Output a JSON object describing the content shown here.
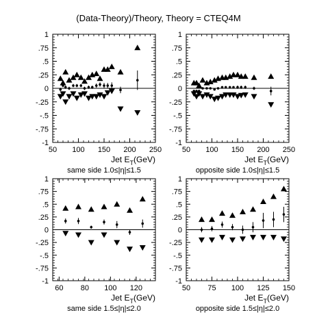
{
  "title": "(Data-Theory)/Theory, Theory = CTEQ4M",
  "chart_data": [
    {
      "type": "scatter",
      "xlabel": "Jet E",
      "xlabel_sub": "T",
      "xlabel_unit": "(GeV)",
      "caption": "same side 1.0≤|η|≤1.5",
      "xlim": [
        50,
        250
      ],
      "ylim": [
        -1,
        1
      ],
      "xticks": [
        50,
        100,
        150,
        200,
        250
      ],
      "yticks": [
        -1,
        -0.75,
        -0.5,
        -0.25,
        0,
        0.25,
        0.5,
        0.75,
        1
      ],
      "series": [
        {
          "marker": "triangle-up",
          "x": [
            65,
            70,
            75,
            82,
            90,
            97,
            105,
            112,
            120,
            127,
            135,
            142,
            150,
            157,
            165,
            182,
            215
          ],
          "y": [
            0.18,
            0.1,
            0.3,
            0.15,
            0.2,
            0.25,
            0.2,
            0.13,
            0.2,
            0.25,
            0.27,
            0.18,
            0.35,
            0.35,
            0.4,
            0.3,
            0.75
          ]
        },
        {
          "marker": "triangle-down",
          "x": [
            65,
            70,
            75,
            82,
            90,
            97,
            105,
            112,
            120,
            127,
            135,
            142,
            150,
            157,
            165,
            182,
            215
          ],
          "y": [
            -0.15,
            -0.1,
            -0.25,
            -0.15,
            -0.1,
            -0.18,
            -0.12,
            -0.1,
            -0.18,
            -0.15,
            -0.15,
            -0.12,
            -0.15,
            -0.08,
            -0.05,
            -0.38,
            -0.45
          ]
        },
        {
          "marker": "point",
          "x": [
            65,
            70,
            75,
            82,
            90,
            97,
            105,
            112,
            120,
            127,
            135,
            142,
            150,
            157,
            165,
            182,
            215
          ],
          "y": [
            -0.02,
            0.05,
            0.02,
            0.0,
            0.05,
            0.05,
            0.05,
            0.0,
            0.02,
            0.02,
            0.05,
            0.07,
            0.05,
            0.05,
            0.05,
            -0.03,
            0.15
          ],
          "err": [
            0.03,
            0.03,
            0.03,
            0.03,
            0.03,
            0.03,
            0.03,
            0.03,
            0.03,
            0.03,
            0.04,
            0.04,
            0.05,
            0.05,
            0.06,
            0.06,
            0.18
          ]
        }
      ]
    },
    {
      "type": "scatter",
      "xlabel": "Jet E",
      "xlabel_sub": "T",
      "xlabel_unit": "(GeV)",
      "caption": "opposite side 1.0≤|η|≤1.5",
      "xlim": [
        50,
        250
      ],
      "ylim": [
        -1,
        1
      ],
      "xticks": [
        50,
        100,
        150,
        200,
        250
      ],
      "yticks": [
        -1,
        -0.75,
        -0.5,
        -0.25,
        0,
        0.25,
        0.5,
        0.75,
        1
      ],
      "series": [
        {
          "marker": "triangle-up",
          "x": [
            65,
            70,
            75,
            82,
            90,
            97,
            105,
            112,
            120,
            127,
            135,
            142,
            150,
            157,
            165,
            182,
            215
          ],
          "y": [
            0.1,
            0.1,
            0.05,
            0.15,
            0.1,
            0.12,
            0.15,
            0.18,
            0.2,
            0.2,
            0.22,
            0.25,
            0.25,
            0.22,
            0.22,
            0.2,
            0.22
          ]
        },
        {
          "marker": "triangle-down",
          "x": [
            65,
            70,
            75,
            82,
            90,
            97,
            105,
            112,
            120,
            127,
            135,
            142,
            150,
            157,
            165,
            182,
            215
          ],
          "y": [
            -0.1,
            -0.15,
            -0.1,
            -0.15,
            -0.12,
            -0.15,
            -0.2,
            -0.18,
            -0.15,
            -0.12,
            -0.12,
            -0.12,
            -0.15,
            -0.13,
            -0.12,
            -0.15,
            -0.3
          ]
        },
        {
          "marker": "point",
          "x": [
            65,
            70,
            75,
            82,
            90,
            97,
            105,
            112,
            120,
            127,
            135,
            142,
            150,
            157,
            165,
            182,
            215
          ],
          "y": [
            -0.05,
            -0.05,
            -0.05,
            0.0,
            0.0,
            0.0,
            -0.02,
            0.0,
            0.02,
            0.02,
            0.02,
            0.02,
            0.02,
            0.02,
            0.02,
            0.0,
            -0.05
          ],
          "err": [
            0.02,
            0.02,
            0.02,
            0.02,
            0.02,
            0.02,
            0.02,
            0.02,
            0.02,
            0.02,
            0.02,
            0.02,
            0.03,
            0.03,
            0.03,
            0.03,
            0.08
          ]
        }
      ]
    },
    {
      "type": "scatter",
      "xlabel": "Jet E",
      "xlabel_sub": "T",
      "xlabel_unit": "(GeV)",
      "caption": "same side 1.5≤|η|≤2.0",
      "xlim": [
        55,
        135
      ],
      "ylim": [
        -1,
        1
      ],
      "xticks": [
        60,
        80,
        100,
        120
      ],
      "yticks": [
        -1,
        -0.75,
        -0.5,
        -0.25,
        0,
        0.25,
        0.5,
        0.75,
        1
      ],
      "series": [
        {
          "marker": "triangle-up",
          "x": [
            65,
            75,
            85,
            95,
            105,
            115,
            125
          ],
          "y": [
            0.42,
            0.45,
            0.4,
            0.45,
            0.5,
            0.38,
            0.6
          ]
        },
        {
          "marker": "triangle-down",
          "x": [
            65,
            75,
            85,
            95,
            105,
            115,
            125
          ],
          "y": [
            -0.07,
            -0.1,
            -0.25,
            -0.1,
            -0.25,
            -0.38,
            -0.35
          ]
        },
        {
          "marker": "point",
          "x": [
            65,
            75,
            85,
            95,
            105,
            115,
            125
          ],
          "y": [
            0.17,
            0.17,
            0.05,
            0.15,
            0.1,
            -0.05,
            0.12
          ],
          "err": [
            0.05,
            0.06,
            0.03,
            0.05,
            0.07,
            0.05,
            0.08
          ]
        }
      ]
    },
    {
      "type": "scatter",
      "xlabel": "Jet E",
      "xlabel_sub": "T",
      "xlabel_unit": "(GeV)",
      "caption": "opposite side 1.5≤|η|≤2.0",
      "xlim": [
        50,
        150
      ],
      "ylim": [
        -1,
        1
      ],
      "xticks": [
        50,
        75,
        100,
        125,
        150
      ],
      "yticks": [
        -1,
        -0.75,
        -0.5,
        -0.25,
        0,
        0.25,
        0.5,
        0.75,
        1
      ],
      "series": [
        {
          "marker": "triangle-up",
          "x": [
            65,
            75,
            85,
            95,
            105,
            115,
            125,
            135,
            145
          ],
          "y": [
            0.2,
            0.2,
            0.32,
            0.28,
            0.35,
            0.4,
            0.55,
            0.65,
            0.8
          ]
        },
        {
          "marker": "triangle-down",
          "x": [
            65,
            75,
            85,
            95,
            105,
            115,
            125,
            135,
            145
          ],
          "y": [
            -0.2,
            -0.2,
            -0.15,
            -0.2,
            -0.18,
            -0.15,
            -0.15,
            -0.15,
            -0.18
          ]
        },
        {
          "marker": "point",
          "x": [
            65,
            75,
            85,
            95,
            105,
            115,
            125,
            135,
            145
          ],
          "y": [
            0.0,
            0.02,
            0.1,
            0.05,
            0.0,
            0.05,
            0.18,
            0.2,
            0.3
          ],
          "err": [
            0.05,
            0.05,
            0.06,
            0.06,
            0.08,
            0.1,
            0.15,
            0.15,
            0.15
          ]
        }
      ]
    }
  ]
}
